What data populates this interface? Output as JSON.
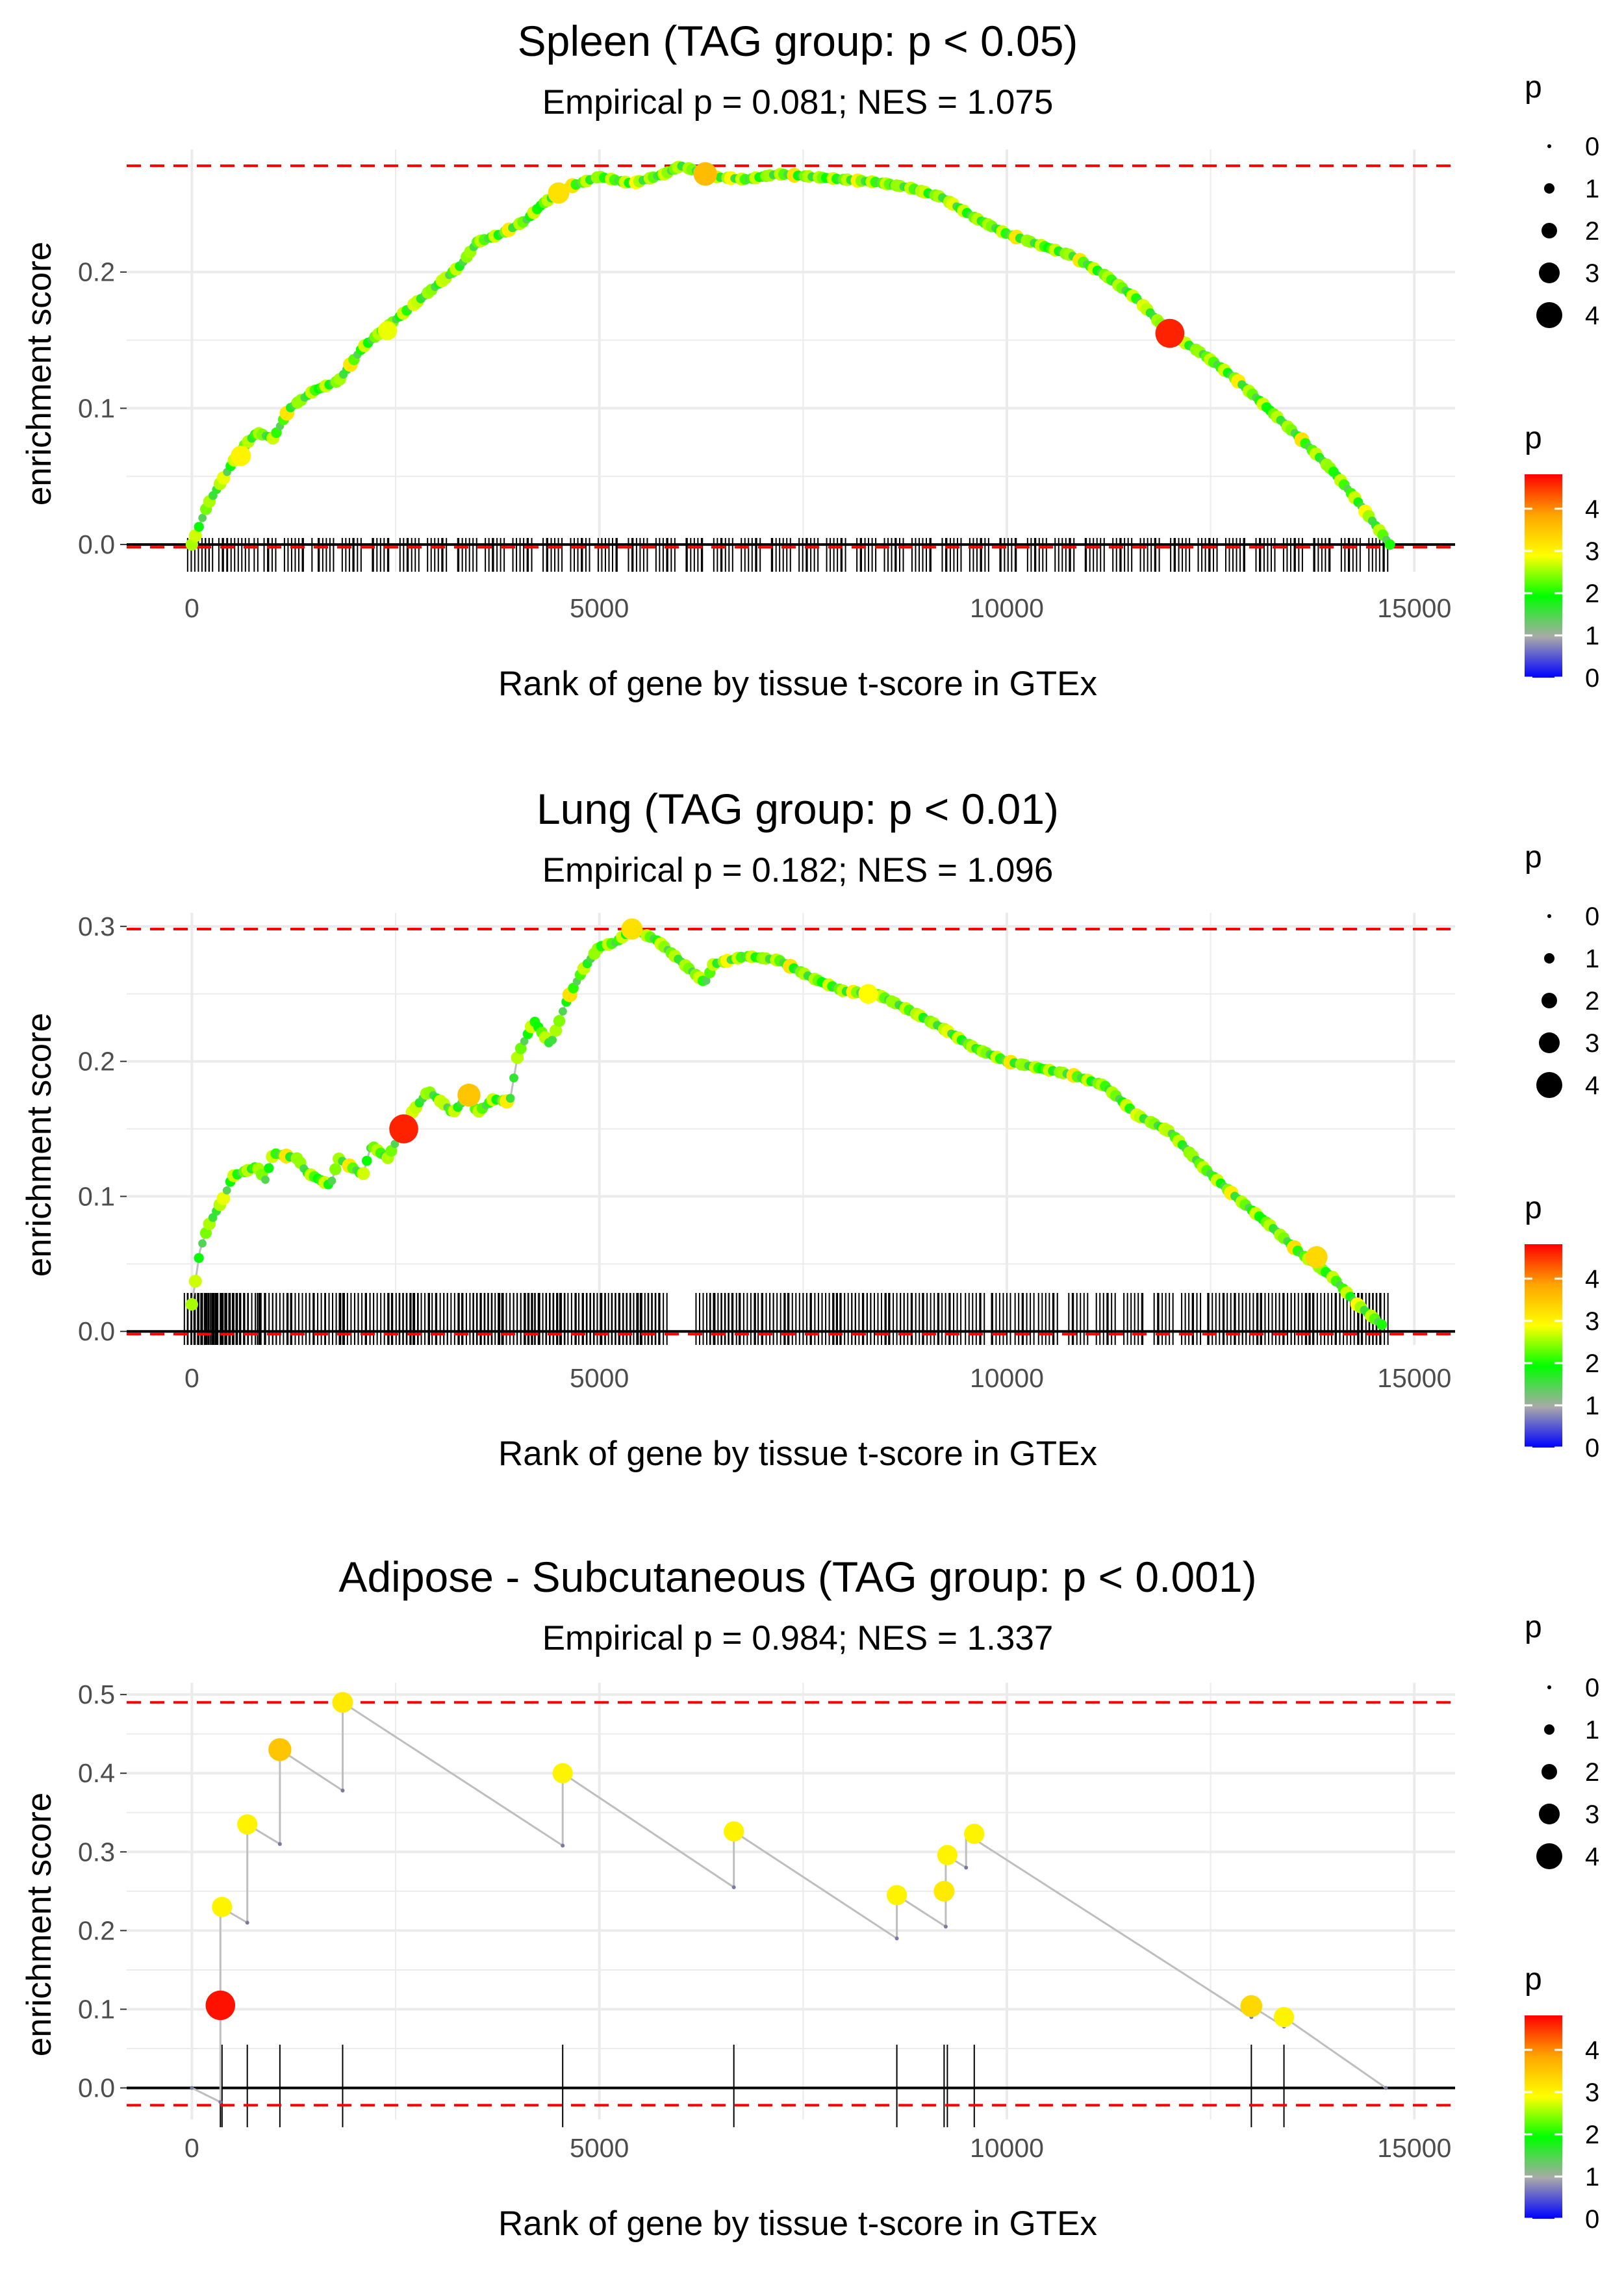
{
  "colors": {
    "ref_line": "#FF0000",
    "gradient": [
      "#0000FF",
      "#A9A9A9",
      "#00FF00",
      "#FFFF00",
      "#FFA500",
      "#FF0000"
    ],
    "path_line": "#BEBEBE",
    "grid": "#EBEBEB",
    "baseline": "#000000"
  },
  "chart_data": [
    {
      "type": "line",
      "title": "Spleen (TAG group: p < 0.05)",
      "subtitle": "Empirical p = 0.081; NES = 1.075",
      "xlabel": "Rank of gene by tissue t-score in GTEx",
      "ylabel": "enrichment score",
      "xlim": [
        -800,
        15500
      ],
      "ylim": [
        -0.02,
        0.29
      ],
      "xticks": [
        0,
        5000,
        10000,
        15000
      ],
      "xtick_labels": [
        "0",
        "5000",
        "10000",
        "15000"
      ],
      "yticks": [
        0.0,
        0.1,
        0.2
      ],
      "ytick_labels": [
        "0.0",
        "0.1",
        "0.2"
      ],
      "ref_lines": [
        0.278,
        -0.002
      ],
      "dense": true,
      "curve": [
        [
          0,
          0.0
        ],
        [
          200,
          0.03
        ],
        [
          400,
          0.05
        ],
        [
          600,
          0.07
        ],
        [
          800,
          0.082
        ],
        [
          1000,
          0.078
        ],
        [
          1200,
          0.1
        ],
        [
          1500,
          0.113
        ],
        [
          1800,
          0.12
        ],
        [
          2100,
          0.145
        ],
        [
          2400,
          0.16
        ],
        [
          2700,
          0.175
        ],
        [
          3000,
          0.19
        ],
        [
          3300,
          0.205
        ],
        [
          3500,
          0.222
        ],
        [
          3800,
          0.228
        ],
        [
          4100,
          0.238
        ],
        [
          4300,
          0.25
        ],
        [
          4600,
          0.262
        ],
        [
          5000,
          0.27
        ],
        [
          5400,
          0.265
        ],
        [
          5800,
          0.272
        ],
        [
          6000,
          0.278
        ],
        [
          6400,
          0.27
        ],
        [
          6800,
          0.268
        ],
        [
          7200,
          0.272
        ],
        [
          7600,
          0.27
        ],
        [
          8000,
          0.268
        ],
        [
          8400,
          0.266
        ],
        [
          8800,
          0.262
        ],
        [
          9200,
          0.255
        ],
        [
          9600,
          0.24
        ],
        [
          10000,
          0.228
        ],
        [
          10400,
          0.22
        ],
        [
          10800,
          0.212
        ],
        [
          11200,
          0.198
        ],
        [
          11600,
          0.18
        ],
        [
          12000,
          0.155
        ],
        [
          12400,
          0.14
        ],
        [
          12800,
          0.122
        ],
        [
          13200,
          0.1
        ],
        [
          13600,
          0.078
        ],
        [
          14000,
          0.054
        ],
        [
          14300,
          0.032
        ],
        [
          14700,
          0.0
        ]
      ],
      "hits_x": [
        80,
        310,
        560,
        900,
        1250,
        1600,
        1950,
        2300,
        2650,
        3000,
        3350,
        3700,
        4050,
        4400,
        4750,
        5100,
        5450,
        5800,
        6150,
        6500,
        6850,
        7200,
        7550,
        7900,
        8250,
        8600,
        8950,
        9300,
        9650,
        10000,
        10350,
        10700,
        11050,
        11400,
        11750,
        12100,
        12450,
        12800,
        13150,
        13500,
        13850,
        14200,
        14550
      ],
      "highlights": [
        {
          "x": 12000,
          "y": 0.155,
          "p": 4.6
        },
        {
          "x": 6300,
          "y": 0.272,
          "p": 3.6
        },
        {
          "x": 4500,
          "y": 0.258,
          "p": 3.2
        },
        {
          "x": 600,
          "y": 0.065,
          "p": 3.0
        },
        {
          "x": 2400,
          "y": 0.157,
          "p": 2.8
        }
      ],
      "legend_size_title": "p",
      "legend_size_values": [
        0,
        1,
        2,
        3,
        4
      ],
      "legend_color_title": "p",
      "legend_color_ticks": [
        0,
        1,
        2,
        3,
        4
      ],
      "legend_color_range": [
        0,
        4.8
      ]
    },
    {
      "type": "line",
      "title": "Lung (TAG group: p < 0.01)",
      "subtitle": "Empirical p = 0.182; NES = 1.096",
      "xlabel": "Rank of gene by tissue t-score in GTEx",
      "ylabel": "enrichment score",
      "xlim": [
        -800,
        15500
      ],
      "ylim": [
        -0.01,
        0.31
      ],
      "xticks": [
        0,
        5000,
        10000,
        15000
      ],
      "xtick_labels": [
        "0",
        "5000",
        "10000",
        "15000"
      ],
      "yticks": [
        0.0,
        0.1,
        0.2,
        0.3
      ],
      "ytick_labels": [
        "0.0",
        "0.1",
        "0.2",
        "0.3"
      ],
      "ref_lines": [
        0.298,
        -0.002
      ],
      "dense": true,
      "curve": [
        [
          0,
          0.02
        ],
        [
          100,
          0.06
        ],
        [
          200,
          0.078
        ],
        [
          400,
          0.1
        ],
        [
          500,
          0.115
        ],
        [
          800,
          0.122
        ],
        [
          900,
          0.112
        ],
        [
          1000,
          0.132
        ],
        [
          1300,
          0.128
        ],
        [
          1400,
          0.118
        ],
        [
          1700,
          0.108
        ],
        [
          1800,
          0.128
        ],
        [
          2100,
          0.116
        ],
        [
          2200,
          0.138
        ],
        [
          2400,
          0.128
        ],
        [
          2600,
          0.152
        ],
        [
          2700,
          0.162
        ],
        [
          2900,
          0.178
        ],
        [
          3100,
          0.168
        ],
        [
          3200,
          0.162
        ],
        [
          3400,
          0.175
        ],
        [
          3500,
          0.162
        ],
        [
          3700,
          0.172
        ],
        [
          3900,
          0.17
        ],
        [
          4000,
          0.205
        ],
        [
          4200,
          0.23
        ],
        [
          4400,
          0.212
        ],
        [
          4600,
          0.245
        ],
        [
          4800,
          0.268
        ],
        [
          5000,
          0.285
        ],
        [
          5200,
          0.288
        ],
        [
          5400,
          0.298
        ],
        [
          5700,
          0.29
        ],
        [
          6300,
          0.258
        ],
        [
          6400,
          0.272
        ],
        [
          6800,
          0.278
        ],
        [
          7200,
          0.275
        ],
        [
          7600,
          0.262
        ],
        [
          8000,
          0.252
        ],
        [
          8400,
          0.25
        ],
        [
          8800,
          0.238
        ],
        [
          9200,
          0.225
        ],
        [
          9600,
          0.21
        ],
        [
          10000,
          0.2
        ],
        [
          10400,
          0.195
        ],
        [
          10800,
          0.19
        ],
        [
          11200,
          0.182
        ],
        [
          11600,
          0.16
        ],
        [
          12000,
          0.148
        ],
        [
          12400,
          0.122
        ],
        [
          12800,
          0.1
        ],
        [
          13200,
          0.08
        ],
        [
          13600,
          0.058
        ],
        [
          14000,
          0.04
        ],
        [
          14300,
          0.02
        ],
        [
          14600,
          0.005
        ]
      ],
      "hits_x": [
        40,
        90,
        150,
        220,
        300,
        420,
        560,
        720,
        900,
        1100,
        1300,
        1500,
        1750,
        1900,
        2100,
        2300,
        2500,
        2650,
        2800,
        3000,
        3200,
        3400,
        3550,
        3700,
        3850,
        4050,
        4150,
        4300,
        4450,
        4600,
        4800,
        4950,
        5100,
        5250,
        5400,
        5550,
        5700,
        6300,
        6450,
        6600,
        6800,
        7000,
        7200,
        7400,
        7600,
        7800,
        8000,
        8200,
        8400,
        8600,
        8800,
        9050,
        9300,
        9600,
        9900,
        10200,
        10500,
        10850,
        11200,
        11550,
        11900,
        12250,
        12550,
        12800,
        13000,
        13200,
        13400,
        13600,
        13800,
        14000,
        14200,
        14400,
        14550
      ],
      "highlights": [
        {
          "x": 2600,
          "y": 0.15,
          "p": 4.6
        },
        {
          "x": 3400,
          "y": 0.175,
          "p": 3.5
        },
        {
          "x": 13800,
          "y": 0.055,
          "p": 3.3
        },
        {
          "x": 5400,
          "y": 0.298,
          "p": 3.2
        },
        {
          "x": 8300,
          "y": 0.25,
          "p": 2.9
        }
      ],
      "legend_size_title": "p",
      "legend_size_values": [
        0,
        1,
        2,
        3,
        4
      ],
      "legend_color_title": "p",
      "legend_color_ticks": [
        0,
        1,
        2,
        3,
        4
      ],
      "legend_color_range": [
        0,
        4.8
      ]
    },
    {
      "type": "line",
      "title": "Adipose - Subcutaneous (TAG group: p < 0.001)",
      "subtitle": "Empirical p = 0.984; NES = 1.337",
      "xlabel": "Rank of gene by tissue t-score in GTEx",
      "ylabel": "enrichment score",
      "xlim": [
        -800,
        15500
      ],
      "ylim": [
        -0.04,
        0.515
      ],
      "xticks": [
        0,
        5000,
        10000,
        15000
      ],
      "xtick_labels": [
        "0",
        "5000",
        "10000",
        "15000"
      ],
      "yticks": [
        0.0,
        0.1,
        0.2,
        0.3,
        0.4,
        0.5
      ],
      "ytick_labels": [
        "0.0",
        "0.1",
        "0.2",
        "0.3",
        "0.4",
        "0.5"
      ],
      "ref_lines": [
        0.49,
        -0.022
      ],
      "dense": false,
      "curve": [
        [
          0,
          0.0
        ],
        [
          350,
          -0.018
        ],
        [
          350,
          0.105
        ],
        [
          350,
          0.23
        ],
        [
          680,
          0.21
        ],
        [
          680,
          0.335
        ],
        [
          1080,
          0.31
        ],
        [
          1080,
          0.43
        ],
        [
          1850,
          0.378
        ],
        [
          1850,
          0.49
        ],
        [
          4550,
          0.308
        ],
        [
          4550,
          0.4
        ],
        [
          6650,
          0.255
        ],
        [
          6650,
          0.326
        ],
        [
          8650,
          0.19
        ],
        [
          8650,
          0.245
        ],
        [
          9250,
          0.205
        ],
        [
          9250,
          0.25
        ],
        [
          9250,
          0.296
        ],
        [
          9500,
          0.28
        ],
        [
          9500,
          0.323
        ],
        [
          13000,
          0.09
        ],
        [
          13000,
          0.104
        ],
        [
          13400,
          0.078
        ],
        [
          13400,
          0.09
        ],
        [
          14650,
          0.0
        ]
      ],
      "hits_x": [
        350,
        370,
        680,
        1080,
        1850,
        4550,
        6650,
        8650,
        9230,
        9270,
        9600,
        13000,
        13400
      ],
      "points": [
        {
          "x": 350,
          "y": 0.105,
          "p": 4.7
        },
        {
          "x": 370,
          "y": 0.23,
          "p": 3.0
        },
        {
          "x": 680,
          "y": 0.335,
          "p": 3.0
        },
        {
          "x": 1080,
          "y": 0.43,
          "p": 3.5
        },
        {
          "x": 1850,
          "y": 0.49,
          "p": 3.1
        },
        {
          "x": 4550,
          "y": 0.4,
          "p": 3.0
        },
        {
          "x": 6650,
          "y": 0.326,
          "p": 3.0
        },
        {
          "x": 8650,
          "y": 0.245,
          "p": 3.0
        },
        {
          "x": 9230,
          "y": 0.25,
          "p": 3.1
        },
        {
          "x": 9270,
          "y": 0.296,
          "p": 3.0
        },
        {
          "x": 9600,
          "y": 0.323,
          "p": 3.0
        },
        {
          "x": 13000,
          "y": 0.104,
          "p": 3.3
        },
        {
          "x": 13400,
          "y": 0.09,
          "p": 3.0
        }
      ],
      "legend_size_title": "p",
      "legend_size_values": [
        0,
        1,
        2,
        3,
        4
      ],
      "legend_color_title": "p",
      "legend_color_ticks": [
        0,
        1,
        2,
        3,
        4
      ],
      "legend_color_range": [
        0,
        4.8
      ]
    }
  ]
}
